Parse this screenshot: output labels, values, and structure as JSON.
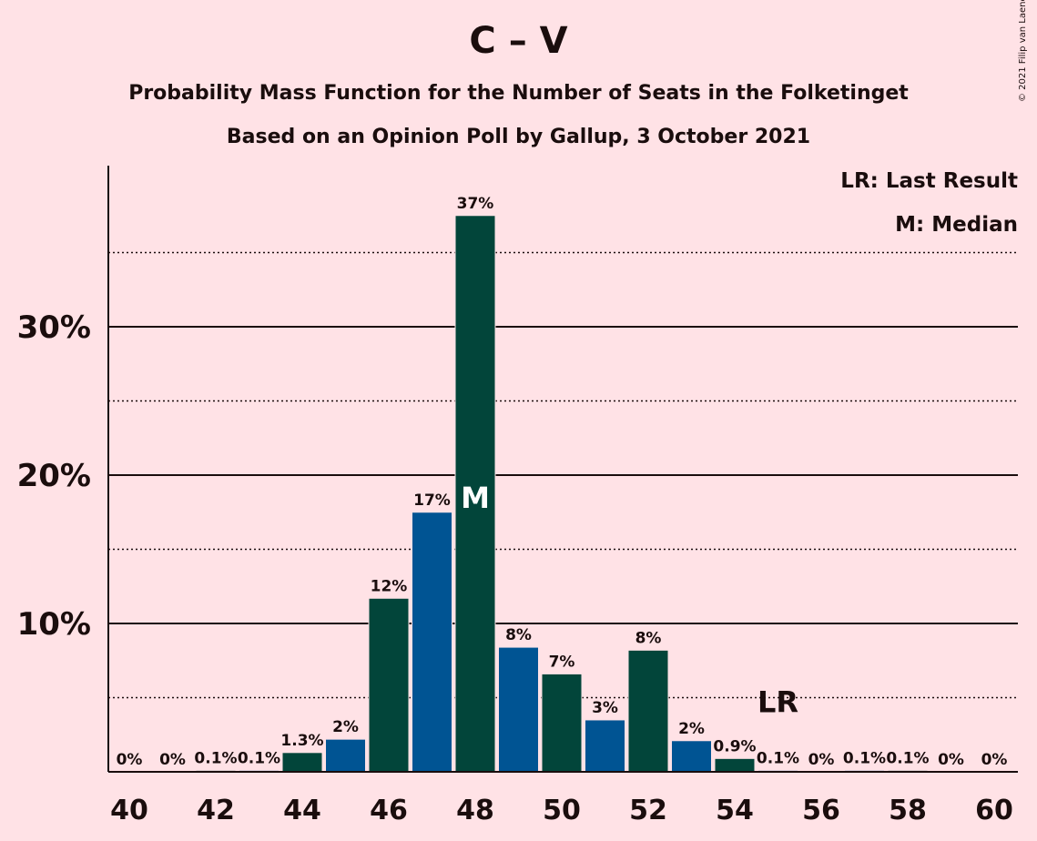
{
  "title": "C – V",
  "subtitle": "Probability Mass Function for the Number of Seats in the Folketinget",
  "subtitle2": "Based on an Opinion Poll by Gallup, 3 October 2021",
  "legend": {
    "lr": "LR: Last Result",
    "m": "M: Median"
  },
  "copyright": "© 2021 Filip van Laenen",
  "markers": {
    "median": "M",
    "last_result": "LR"
  },
  "colors": {
    "background": "#FFE2E6",
    "dark_green": "#02453A",
    "blue": "#005493"
  },
  "chart_data": {
    "type": "bar",
    "x": [
      40,
      41,
      42,
      43,
      44,
      45,
      46,
      47,
      48,
      49,
      50,
      51,
      52,
      53,
      54,
      55,
      56,
      57,
      58,
      59,
      60
    ],
    "values": [
      0,
      0,
      0.1,
      0.1,
      1.3,
      2.2,
      11.7,
      17.5,
      37.5,
      8.4,
      6.6,
      3.5,
      8.2,
      2.1,
      0.9,
      0.1,
      0,
      0.1,
      0.1,
      0,
      0
    ],
    "labels": [
      "0%",
      "0%",
      "0.1%",
      "0.1%",
      "1.3%",
      "2%",
      "12%",
      "17%",
      "37%",
      "8%",
      "7%",
      "3%",
      "8%",
      "2%",
      "0.9%",
      "0.1%",
      "0%",
      "0.1%",
      "0.1%",
      "0%",
      "0%"
    ],
    "x_ticks": [
      "40",
      "42",
      "44",
      "46",
      "48",
      "50",
      "52",
      "54",
      "56",
      "58",
      "60"
    ],
    "y_ticks": [
      "10%",
      "20%",
      "30%"
    ],
    "ylim": [
      0,
      40
    ],
    "median_seat": 48,
    "last_result_seat": 55,
    "gridlines": {
      "solid": [
        10,
        20,
        30
      ],
      "dotted": [
        5,
        15,
        25,
        35
      ]
    },
    "legend_position": "top-right"
  }
}
